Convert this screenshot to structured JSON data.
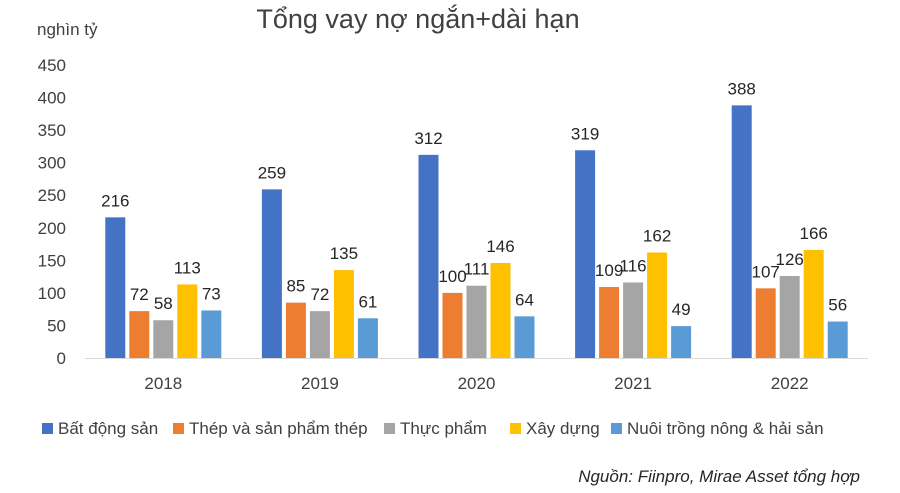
{
  "chart_data": {
    "type": "bar",
    "title": "Tổng vay nợ ngắn+dài hạn",
    "unit_label": "nghìn tỷ",
    "categories": [
      "2018",
      "2019",
      "2020",
      "2021",
      "2022"
    ],
    "ylim": [
      0,
      450
    ],
    "yticks": [
      0,
      50,
      100,
      150,
      200,
      250,
      300,
      350,
      400,
      450
    ],
    "grid": false,
    "legend_position": "bottom",
    "series": [
      {
        "name": "Bất động sản",
        "color": "#4472C4",
        "values": [
          216,
          259,
          312,
          319,
          388
        ]
      },
      {
        "name": "Thép và sản phẩm thép",
        "color": "#ED7D31",
        "values": [
          72,
          85,
          100,
          109,
          107
        ]
      },
      {
        "name": "Thực phẩm",
        "color": "#A5A5A5",
        "values": [
          58,
          72,
          111,
          116,
          126
        ]
      },
      {
        "name": "Xây dựng",
        "color": "#FFC000",
        "values": [
          113,
          135,
          146,
          162,
          166
        ]
      },
      {
        "name": "Nuôi trồng nông & hải sản",
        "color": "#5B9BD5",
        "values": [
          73,
          61,
          64,
          49,
          56
        ]
      }
    ],
    "source": "Nguồn: Fiinpro, Mirae Asset tổng hợp"
  }
}
